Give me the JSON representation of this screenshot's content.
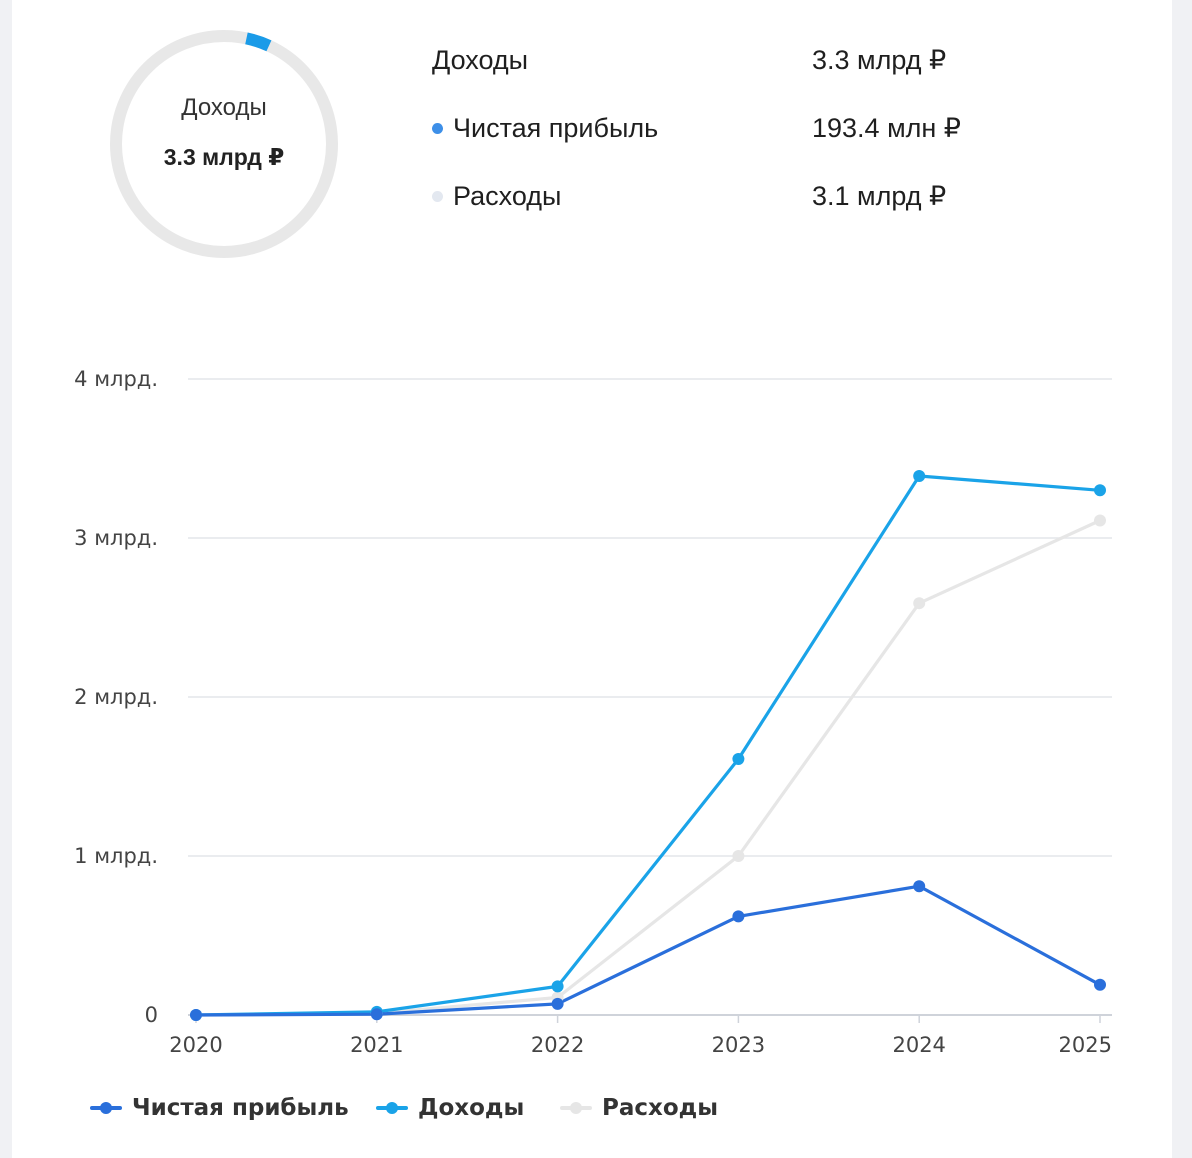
{
  "summary": {
    "donut": {
      "title": "Доходы",
      "value": "3.3 млрд ₽",
      "track_color": "#e8e8e8",
      "arc_color": "#1a9be8",
      "arc_fraction": 0.035
    },
    "rows": [
      {
        "label": "Доходы",
        "value": "3.3 млрд ₽",
        "dot_color": ""
      },
      {
        "label": "Чистая прибыль",
        "value": "193.4 млн ₽",
        "dot_color": "#3d8fe8"
      },
      {
        "label": "Расходы",
        "value": "3.1 млрд ₽",
        "dot_color": "#e3e8f0"
      }
    ]
  },
  "chart_data": {
    "type": "line",
    "x": [
      "2020",
      "2021",
      "2022",
      "2023",
      "2024",
      "2025"
    ],
    "y_ticks": [
      {
        "value": 0,
        "label": "0"
      },
      {
        "value": 1,
        "label": "1 млрд."
      },
      {
        "value": 2,
        "label": "2 млрд."
      },
      {
        "value": 3,
        "label": "3 млрд."
      },
      {
        "value": 4,
        "label": "4 млрд."
      }
    ],
    "ylim": [
      0,
      4
    ],
    "y_unit": "млрд. ₽",
    "grid": true,
    "legend_position": "bottom-left",
    "series": [
      {
        "name": "Чистая прибыль",
        "color": "#2a6fdb",
        "values": [
          0.0,
          0.005,
          0.07,
          0.62,
          0.81,
          0.19
        ]
      },
      {
        "name": "Доходы",
        "color": "#1aa3e8",
        "values": [
          0.0,
          0.02,
          0.18,
          1.61,
          3.39,
          3.3
        ]
      },
      {
        "name": "Расходы",
        "color": "#e6e6e6",
        "values": [
          0.0,
          0.01,
          0.11,
          1.0,
          2.59,
          3.11
        ]
      }
    ]
  }
}
